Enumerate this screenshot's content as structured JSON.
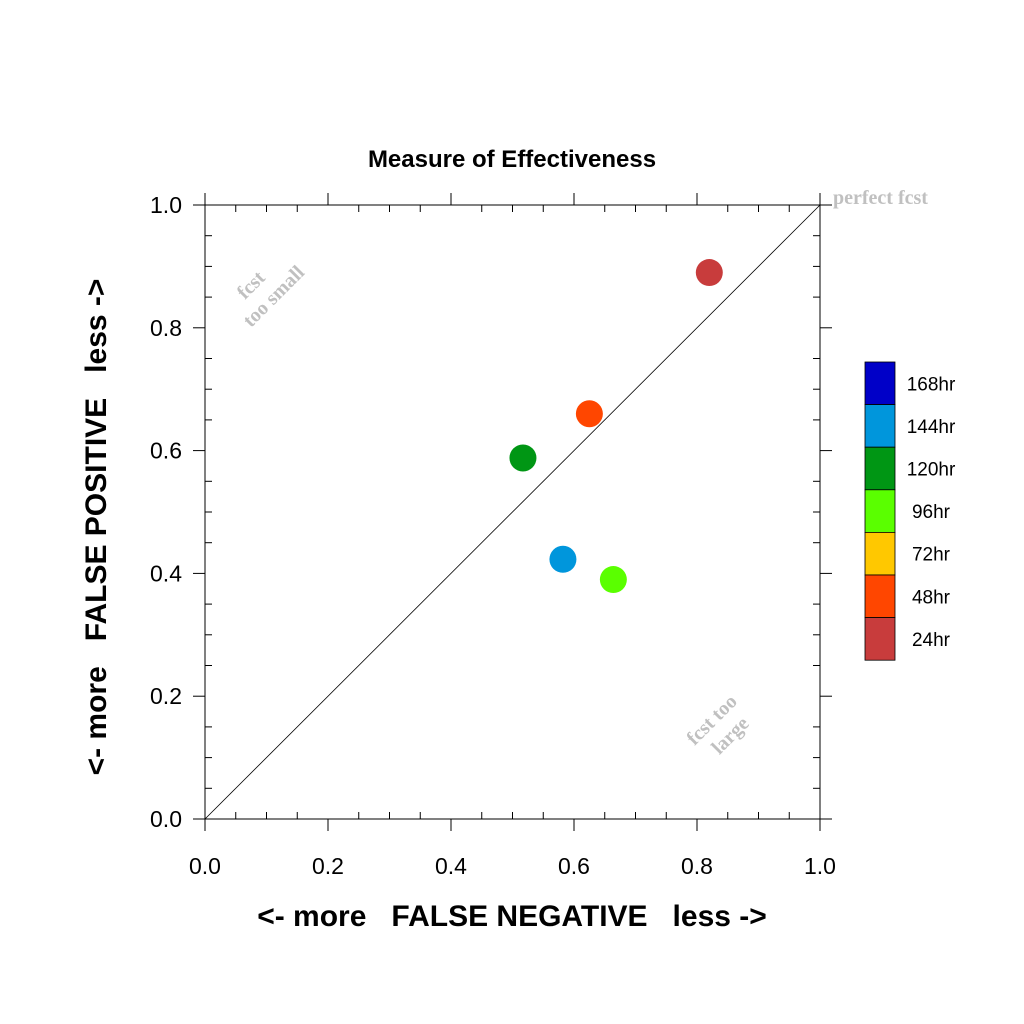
{
  "chart_data": {
    "type": "scatter",
    "title": "Measure of Effectiveness",
    "xlabel": "<- more   FALSE NEGATIVE   less ->",
    "ylabel": "<- more   FALSE POSITIVE   less ->",
    "xlim": [
      0.0,
      1.0
    ],
    "ylim": [
      0.0,
      1.0
    ],
    "xticks": [
      "0.0",
      "0.2",
      "0.4",
      "0.6",
      "0.8",
      "1.0"
    ],
    "yticks": [
      "0.0",
      "0.2",
      "0.4",
      "0.6",
      "0.8",
      "1.0"
    ],
    "xtick_values": [
      0.0,
      0.2,
      0.4,
      0.6,
      0.8,
      1.0
    ],
    "ytick_values": [
      0.0,
      0.2,
      0.4,
      0.6,
      0.8,
      1.0
    ],
    "grid": false,
    "reference_line": "diagonal",
    "annotations": {
      "perfect": "perfect fcst",
      "too_small": [
        "fcst",
        "too small"
      ],
      "too_large": [
        "fcst too",
        "large"
      ]
    },
    "legend": {
      "placement": "right",
      "entries": [
        {
          "label": "168hr",
          "color": "#0000c8"
        },
        {
          "label": "144hr",
          "color": "#0096dc"
        },
        {
          "label": "120hr",
          "color": "#009614"
        },
        {
          "label": "96hr",
          "color": "#5aff00"
        },
        {
          "label": "72hr",
          "color": "#ffc800"
        },
        {
          "label": "48hr",
          "color": "#ff4600"
        },
        {
          "label": "24hr",
          "color": "#c83c3c"
        }
      ]
    },
    "points": [
      {
        "lead": "24hr",
        "x": 0.82,
        "y": 0.89,
        "color": "#c83c3c"
      },
      {
        "lead": "48hr",
        "x": 0.625,
        "y": 0.66,
        "color": "#ff4600"
      },
      {
        "lead": "120hr",
        "x": 0.517,
        "y": 0.588,
        "color": "#009614"
      },
      {
        "lead": "144hr",
        "x": 0.582,
        "y": 0.423,
        "color": "#0096dc"
      },
      {
        "lead": "96hr",
        "x": 0.664,
        "y": 0.39,
        "color": "#5aff00"
      }
    ]
  }
}
